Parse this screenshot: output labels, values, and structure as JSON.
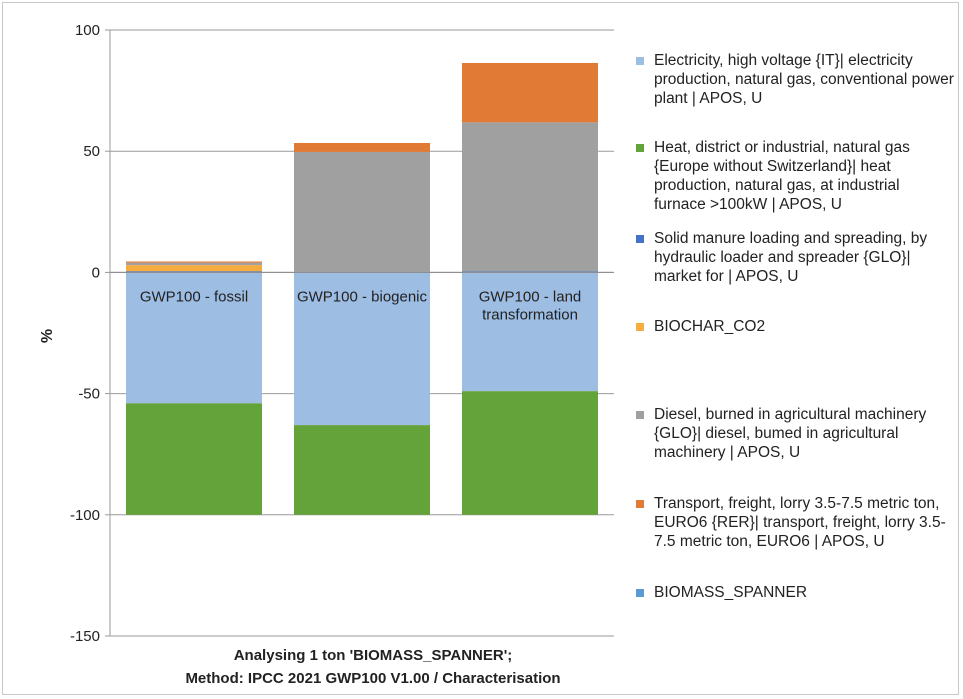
{
  "chart_data": {
    "type": "bar",
    "stacked": true,
    "ylabel": "%",
    "ylim": [
      -150,
      100
    ],
    "yticks": [
      -150,
      -100,
      -50,
      0,
      50,
      100
    ],
    "title_lines": [
      "Analysing 1 ton 'BIOMASS_SPANNER';",
      "Method: IPCC 2021 GWP100 V1.00 / Characterisation"
    ],
    "grid": true,
    "legend_position": "right",
    "categories": [
      [
        "GWP100 - fossil"
      ],
      [
        "GWP100 - biogenic"
      ],
      [
        "GWP100 - land",
        "transformation"
      ]
    ],
    "series": [
      {
        "name": "Electricity, high voltage {IT}| electricity production, natural gas, conventional power plant | APOS, U",
        "color": "#9dbde3",
        "values": [
          -54,
          -63,
          -49
        ]
      },
      {
        "name": "Heat, district or industrial, natural gas {Europe without Switzerland}| heat production, natural gas, at industrial furnace >100kW | APOS, U",
        "color": "#64a23a",
        "values": [
          -46,
          -37,
          -51
        ]
      },
      {
        "name": "Solid manure loading and spreading, by hydraulic loader and spreader {GLO}| market for | APOS, U",
        "color": "#4472c4",
        "values": [
          0.5,
          0.2,
          0.4
        ]
      },
      {
        "name": "BIOCHAR_CO2",
        "color": "#f5ae3d",
        "values": [
          2.5,
          0,
          0
        ]
      },
      {
        "name": "Diesel, burned in agricultural machinery {GLO}| diesel, bumed in agricultural machinery | APOS, U",
        "color": "#a0a0a0",
        "values": [
          1,
          49.5,
          61.5
        ]
      },
      {
        "name": "Transport, freight, lorry 3.5-7.5 metric ton, EURO6 {RER}| transport, freight, lorry 3.5-7.5 metric ton, EURO6 | APOS, U",
        "color": "#e07a35",
        "values": [
          0.5,
          3.7,
          24.5
        ]
      },
      {
        "name": "BIOMASS_SPANNER",
        "color": "#5b9bd5",
        "values": [
          0,
          0,
          0
        ]
      }
    ]
  }
}
